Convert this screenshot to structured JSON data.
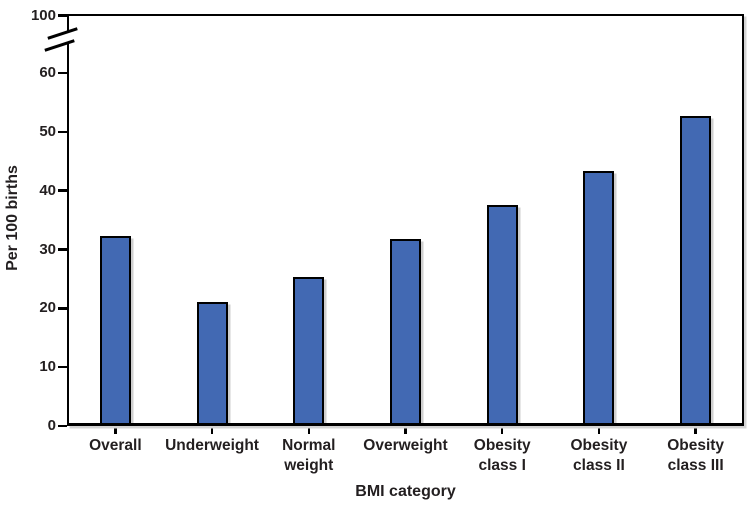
{
  "figure": {
    "background_color": "#ffffff",
    "text_color": "#231f20"
  },
  "chart_data": {
    "type": "bar",
    "title": "",
    "xlabel": "BMI category",
    "ylabel": "Per 100 births",
    "categories": [
      "Overall",
      "Underweight",
      "Normal weight",
      "Overweight",
      "Obesity class I",
      "Obesity class II",
      "Obesity class III"
    ],
    "category_label_lines": [
      [
        "Overall"
      ],
      [
        "Underweight"
      ],
      [
        "Normal",
        "weight"
      ],
      [
        "Overweight"
      ],
      [
        "Obesity",
        "class I"
      ],
      [
        "Obesity",
        "class II"
      ],
      [
        "Obesity",
        "class III"
      ]
    ],
    "values": [
      32.3,
      21.1,
      25.4,
      31.8,
      37.6,
      43.4,
      52.7
    ],
    "y_axis": {
      "ticks": [
        0,
        10,
        20,
        30,
        40,
        50,
        60
      ],
      "top_tick_label": "100",
      "axis_break_between": [
        60,
        100
      ]
    },
    "ylim_visible": [
      0,
      70
    ],
    "grid": false,
    "legend": null,
    "bar_color": "#4269b3",
    "bar_border_color": "#000000",
    "axis_color": "#000000"
  }
}
